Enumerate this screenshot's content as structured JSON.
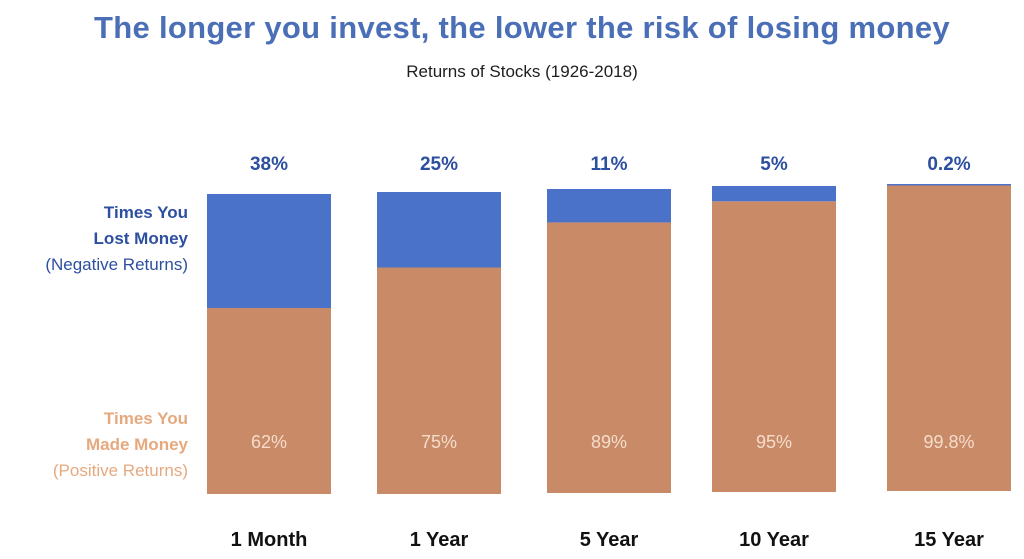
{
  "title": "The longer you invest, the lower the risk of losing money",
  "subtitle": "Returns of Stocks (1926-2018)",
  "labels": {
    "loss_line1": "Times You",
    "loss_line2": "Lost Money",
    "loss_line3": "(Negative Returns)",
    "gain_line1": "Times You",
    "gain_line2": "Made Money",
    "gain_line3": "(Positive Returns)"
  },
  "colors": {
    "loss": "#4a72c8",
    "gain": "#c98a68",
    "loss_text": "#2d4fa0",
    "gain_label_text": "#e6a97e",
    "gain_value_text": "#f5dccb",
    "category_text": "#111111"
  },
  "chart_data": {
    "type": "bar",
    "stacked": true,
    "categories": [
      "1 Month",
      "1 Year",
      "5 Year",
      "10 Year",
      "15 Year"
    ],
    "series": [
      {
        "name": "Times You Lost Money (Negative Returns)",
        "values": [
          38,
          25,
          11,
          5,
          0.2
        ],
        "labels": [
          "38%",
          "25%",
          "11%",
          "5%",
          "0.2%"
        ]
      },
      {
        "name": "Times You Made Money (Positive Returns)",
        "values": [
          62,
          75,
          89,
          95,
          99.8
        ],
        "labels": [
          "62%",
          "75%",
          "89%",
          "95%",
          "99.8%"
        ]
      }
    ],
    "ylim": [
      0,
      100
    ]
  }
}
